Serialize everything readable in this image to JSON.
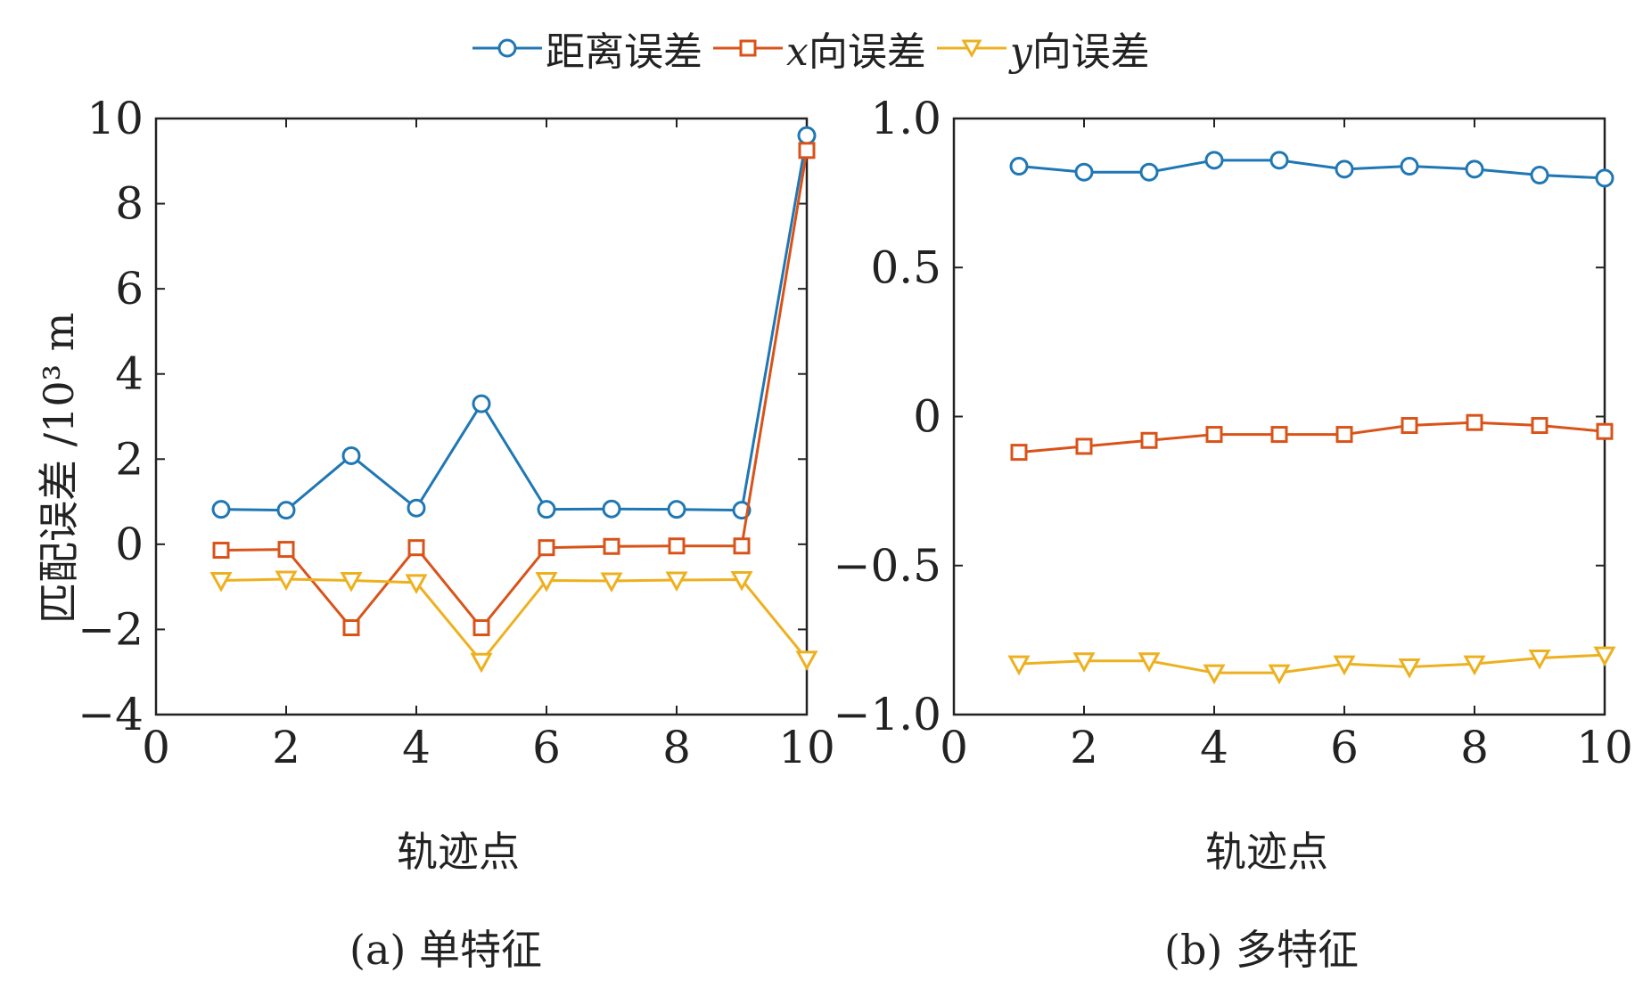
{
  "legend": {
    "entries": [
      {
        "prefix": "",
        "label": "距离误差",
        "color": "#1f77b4",
        "marker": "circle"
      },
      {
        "prefix": "x",
        "label": "向误差",
        "color": "#d95319",
        "marker": "square"
      },
      {
        "prefix": "y",
        "label": "向误差",
        "color": "#edb120",
        "marker": "triangle-down"
      }
    ]
  },
  "ylabel_left": "匹配误差 /10³ m",
  "chart_data": [
    {
      "type": "line",
      "caption": "(a) 单特征",
      "xlabel": "轨迹点",
      "xlim": [
        0,
        10
      ],
      "ylim": [
        -4,
        10
      ],
      "xticks": [
        "0",
        "2",
        "4",
        "6",
        "8",
        "10"
      ],
      "yticks": [
        "−4",
        "−2",
        "0",
        "2",
        "4",
        "6",
        "8",
        "10"
      ],
      "x": [
        1,
        2,
        3,
        4,
        5,
        6,
        7,
        8,
        9,
        10
      ],
      "series": [
        {
          "name": "距离误差",
          "values": [
            0.82,
            0.8,
            2.08,
            0.85,
            3.3,
            0.82,
            0.83,
            0.82,
            0.8,
            9.6
          ]
        },
        {
          "name": "x向误差",
          "values": [
            -0.14,
            -0.12,
            -1.96,
            -0.08,
            -1.96,
            -0.08,
            -0.05,
            -0.04,
            -0.04,
            9.25
          ]
        },
        {
          "name": "y向误差",
          "values": [
            -0.85,
            -0.82,
            -0.85,
            -0.9,
            -2.75,
            -0.85,
            -0.86,
            -0.84,
            -0.83,
            -2.7
          ]
        }
      ]
    },
    {
      "type": "line",
      "caption": "(b) 多特征",
      "xlabel": "轨迹点",
      "xlim": [
        0,
        10
      ],
      "ylim": [
        -1.0,
        1.0
      ],
      "xticks": [
        "0",
        "2",
        "4",
        "6",
        "8",
        "10"
      ],
      "yticks": [
        "−1.0",
        "−0.5",
        "0",
        "0.5",
        "1.0"
      ],
      "x": [
        1,
        2,
        3,
        4,
        5,
        6,
        7,
        8,
        9,
        10
      ],
      "series": [
        {
          "name": "距离误差",
          "values": [
            0.84,
            0.82,
            0.82,
            0.86,
            0.86,
            0.83,
            0.84,
            0.83,
            0.81,
            0.8
          ]
        },
        {
          "name": "x向误差",
          "values": [
            -0.12,
            -0.1,
            -0.08,
            -0.06,
            -0.06,
            -0.06,
            -0.03,
            -0.02,
            -0.03,
            -0.05
          ]
        },
        {
          "name": "y向误差",
          "values": [
            -0.83,
            -0.82,
            -0.82,
            -0.86,
            -0.86,
            -0.83,
            -0.84,
            -0.83,
            -0.81,
            -0.8
          ]
        }
      ]
    }
  ]
}
